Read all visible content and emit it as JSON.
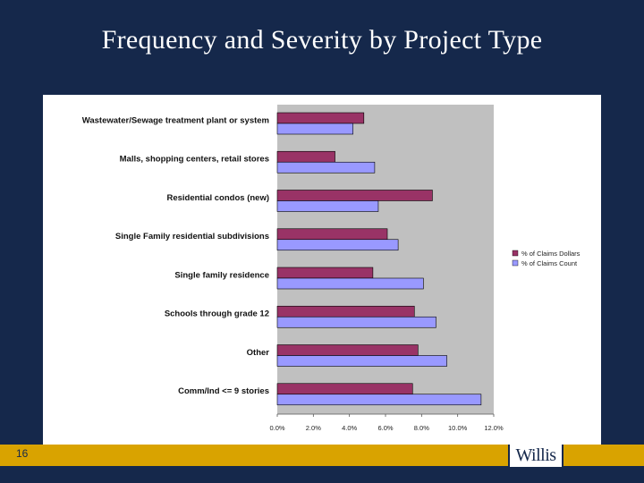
{
  "slide": {
    "title": "Frequency and Severity by Project Type",
    "page_number": "16",
    "logo_text": "Willis"
  },
  "colors": {
    "background": "#15284b",
    "footer_accent": "#d9a300",
    "plot_area": "#c0c0c0",
    "dollars_series": "#993366",
    "count_series": "#9999ff"
  },
  "chart_data": {
    "type": "bar",
    "orientation": "horizontal",
    "title": "",
    "xlabel": "",
    "ylabel": "",
    "categories": [
      "Wastewater/Sewage treatment plant or system",
      "Malls, shopping centers, retail stores",
      "Residential condos (new)",
      "Single Family residential subdivisions",
      "Single family residence",
      "Schools through grade 12",
      "Other",
      "Comm/Ind <= 9 stories"
    ],
    "series": [
      {
        "name": "% of Claims Dollars",
        "color": "#993366",
        "values": [
          4.8,
          3.2,
          8.6,
          6.1,
          5.3,
          7.6,
          7.8,
          7.5
        ]
      },
      {
        "name": "% of Claims Count",
        "color": "#9999ff",
        "values": [
          4.2,
          5.4,
          5.6,
          6.7,
          8.1,
          8.8,
          9.4,
          11.3
        ]
      }
    ],
    "xlim": [
      0,
      12
    ],
    "ticks": [
      "0.0%",
      "2.0%",
      "4.0%",
      "6.0%",
      "8.0%",
      "10.0%",
      "12.0%"
    ],
    "grid": false,
    "legend_position": "right"
  }
}
